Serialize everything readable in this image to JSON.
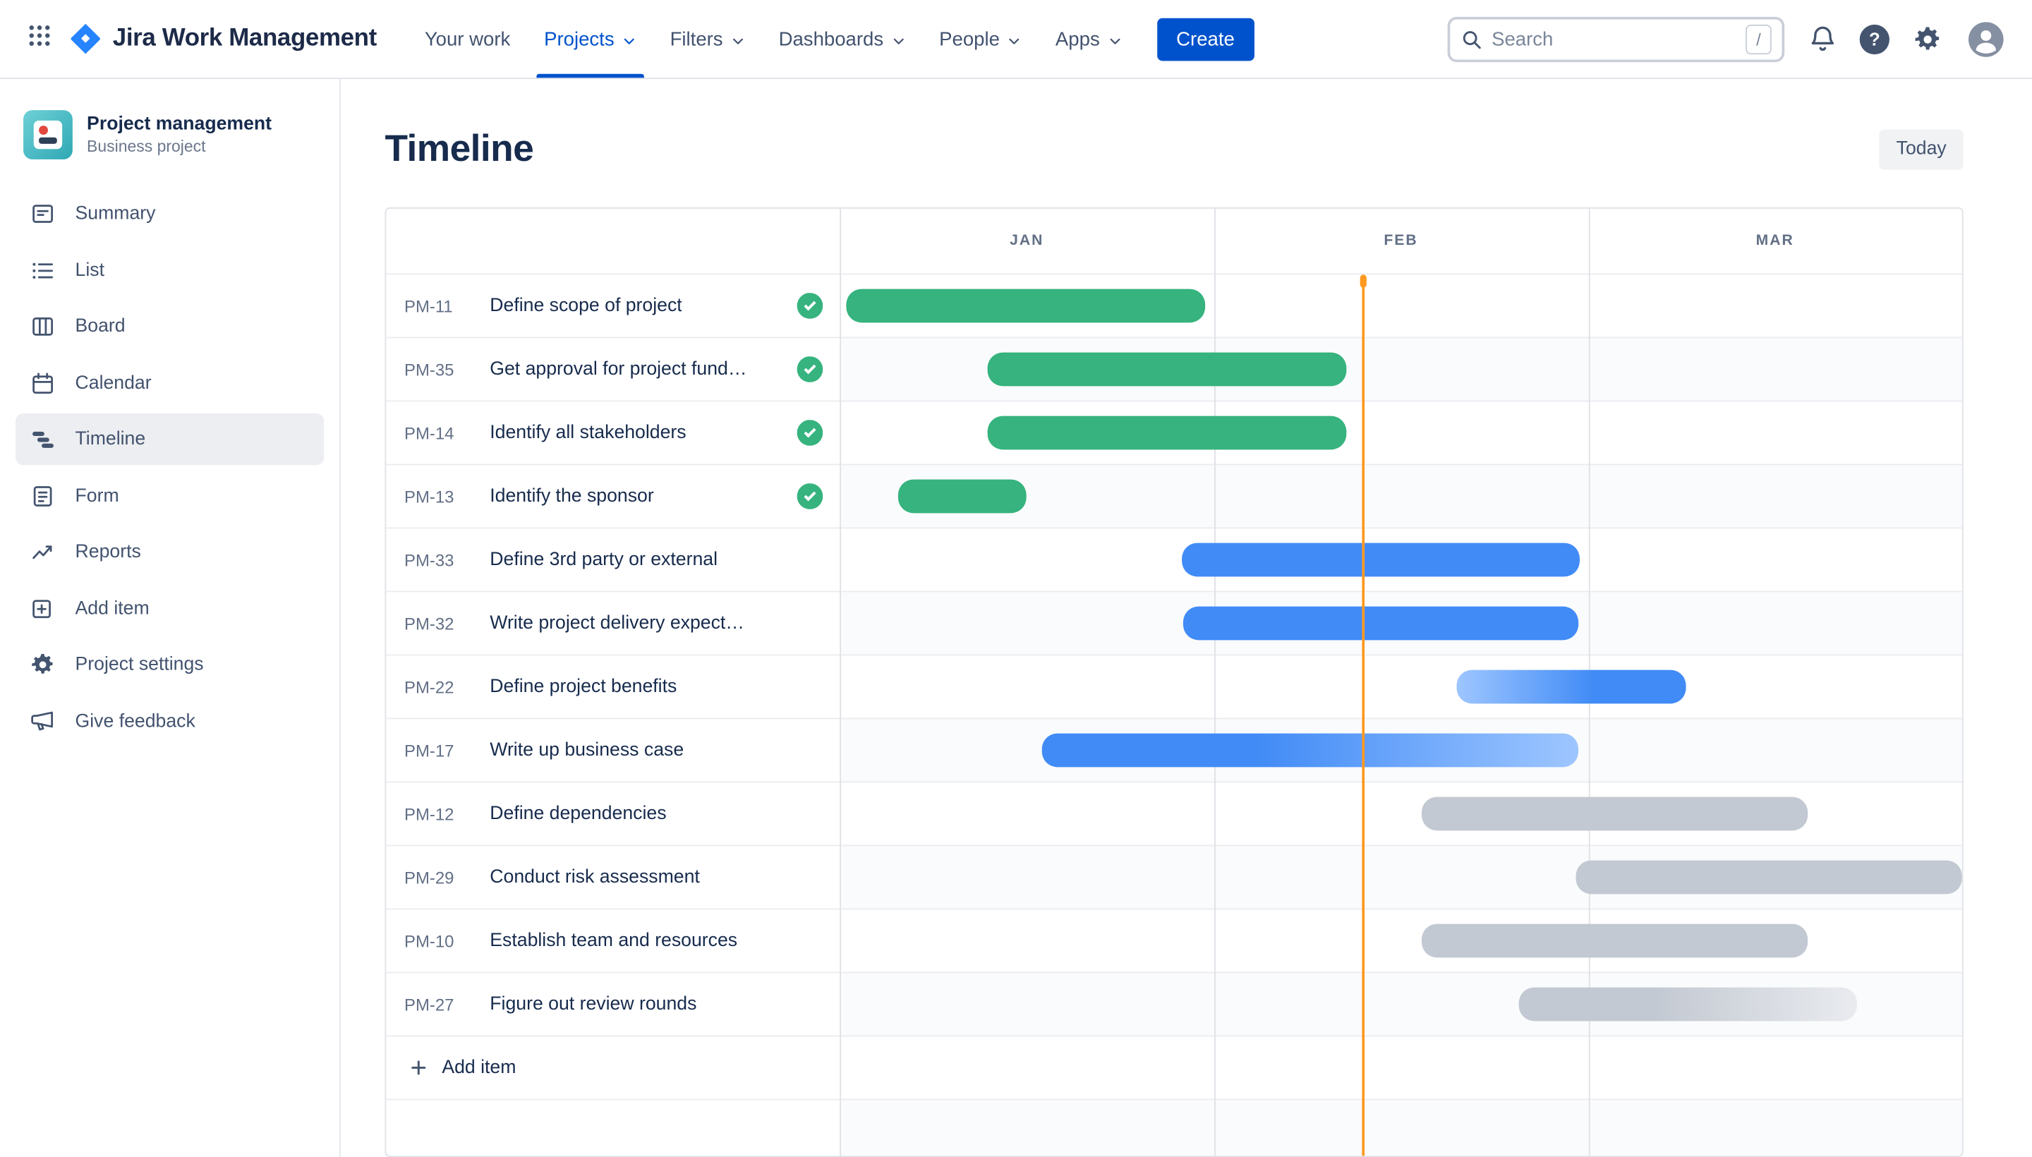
{
  "navbar": {
    "app_name": "Jira Work Management",
    "items": [
      {
        "label": "Your work",
        "chevron": false,
        "active": false
      },
      {
        "label": "Projects",
        "chevron": true,
        "active": true
      },
      {
        "label": "Filters",
        "chevron": true,
        "active": false
      },
      {
        "label": "Dashboards",
        "chevron": true,
        "active": false
      },
      {
        "label": "People",
        "chevron": true,
        "active": false
      },
      {
        "label": "Apps",
        "chevron": true,
        "active": false
      }
    ],
    "create_button": "Create",
    "search": {
      "placeholder": "Search",
      "shortcut_hint": "/"
    },
    "help_glyph": "?",
    "accent_color": "#0052CC"
  },
  "sidebar": {
    "project": {
      "name": "Project management",
      "type": "Business project"
    },
    "items": [
      {
        "label": "Summary",
        "icon": "summary-icon",
        "active": false
      },
      {
        "label": "List",
        "icon": "list-icon",
        "active": false
      },
      {
        "label": "Board",
        "icon": "board-icon",
        "active": false
      },
      {
        "label": "Calendar",
        "icon": "calendar-icon",
        "active": false
      },
      {
        "label": "Timeline",
        "icon": "timeline-icon",
        "active": true
      },
      {
        "label": "Form",
        "icon": "form-icon",
        "active": false
      },
      {
        "label": "Reports",
        "icon": "reports-icon",
        "active": false
      },
      {
        "label": "Add item",
        "icon": "add-item-icon",
        "active": false
      },
      {
        "label": "Project settings",
        "icon": "settings-icon",
        "active": false
      },
      {
        "label": "Give feedback",
        "icon": "feedback-icon",
        "active": false
      }
    ]
  },
  "page": {
    "title": "Timeline",
    "today_button": "Today",
    "add_item": "Add item"
  },
  "chart_data": {
    "type": "gantt",
    "months": [
      "JAN",
      "FEB",
      "MAR"
    ],
    "today_fraction": 0.466,
    "palette": {
      "green": "#36B37E",
      "green_light": "#86D8B4",
      "blue": "#418BF6",
      "blue_light": "#9EC6FF",
      "gray": "#C3C9D2",
      "gray_light": "#E9EBEF",
      "today_line": "#FF991F"
    },
    "rows": [
      {
        "key": "PM-11",
        "title": "Define scope of project",
        "done": true,
        "bar": {
          "start": 0.006,
          "end": 0.326,
          "color": "green",
          "gradient": "none"
        }
      },
      {
        "key": "PM-35",
        "title": "Get approval for project fund…",
        "done": true,
        "bar": {
          "start": 0.132,
          "end": 0.451,
          "color": "green",
          "gradient": "none"
        }
      },
      {
        "key": "PM-14",
        "title": "Identify all stakeholders",
        "done": true,
        "bar": {
          "start": 0.132,
          "end": 0.451,
          "color": "green",
          "gradient": "none"
        }
      },
      {
        "key": "PM-13",
        "title": "Identify the sponsor",
        "done": true,
        "bar": {
          "start": 0.052,
          "end": 0.166,
          "color": "green",
          "gradient": "none"
        }
      },
      {
        "key": "PM-33",
        "title": "Define 3rd party or external",
        "done": false,
        "bar": {
          "start": 0.305,
          "end": 0.659,
          "color": "blue",
          "gradient": "none"
        }
      },
      {
        "key": "PM-32",
        "title": "Write project delivery expect…",
        "done": false,
        "bar": {
          "start": 0.306,
          "end": 0.658,
          "color": "blue",
          "gradient": "none"
        }
      },
      {
        "key": "PM-22",
        "title": "Define project benefits",
        "done": false,
        "bar": {
          "start": 0.55,
          "end": 0.754,
          "color": "blue",
          "gradient": "fade-left"
        }
      },
      {
        "key": "PM-17",
        "title": "Write up business case",
        "done": false,
        "bar": {
          "start": 0.18,
          "end": 0.658,
          "color": "blue",
          "gradient": "fade-right"
        }
      },
      {
        "key": "PM-12",
        "title": "Define dependencies",
        "done": false,
        "bar": {
          "start": 0.519,
          "end": 0.863,
          "color": "gray",
          "gradient": "none"
        }
      },
      {
        "key": "PM-29",
        "title": "Conduct risk assessment",
        "done": false,
        "bar": {
          "start": 0.656,
          "end": 1.0,
          "color": "gray",
          "gradient": "none"
        }
      },
      {
        "key": "PM-10",
        "title": "Establish team and resources",
        "done": false,
        "bar": {
          "start": 0.519,
          "end": 0.863,
          "color": "gray",
          "gradient": "none"
        }
      },
      {
        "key": "PM-27",
        "title": "Figure out review rounds",
        "done": false,
        "bar": {
          "start": 0.605,
          "end": 0.907,
          "color": "gray",
          "gradient": "fade-right"
        }
      }
    ]
  }
}
